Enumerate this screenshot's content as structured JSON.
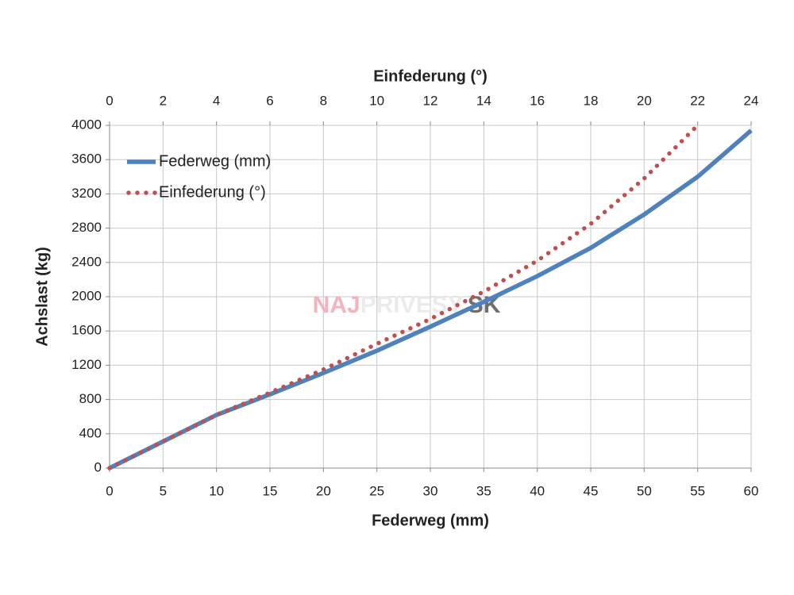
{
  "chart_data": {
    "type": "line",
    "xlabel": "Federweg (mm)",
    "x2label": "Einfederung (°)",
    "ylabel": "Achslast (kg)",
    "watermark": [
      "NAJ",
      "PRIVESY",
      ".SK"
    ],
    "xlim": [
      0,
      60
    ],
    "xticks": [
      0,
      5,
      10,
      15,
      20,
      25,
      30,
      35,
      40,
      45,
      50,
      55,
      60
    ],
    "x2lim": [
      0,
      24
    ],
    "x2ticks": [
      0,
      2,
      4,
      6,
      8,
      10,
      12,
      14,
      16,
      18,
      20,
      22,
      24
    ],
    "ylim": [
      0,
      4000
    ],
    "yticks": [
      0,
      400,
      800,
      1200,
      1600,
      2000,
      2400,
      2800,
      3200,
      3600,
      4000
    ],
    "grid": true,
    "legend": "upper left",
    "series": [
      {
        "name": "Federweg (mm)",
        "color": "#4f81bd",
        "style": "solid",
        "x": [
          0,
          5,
          10,
          15,
          20,
          25,
          30,
          35,
          40,
          45,
          50,
          55,
          60
        ],
        "values": [
          0,
          310,
          620,
          860,
          1110,
          1370,
          1650,
          1940,
          2240,
          2570,
          2960,
          3400,
          3940
        ]
      },
      {
        "name": "Einfederung (°)",
        "color": "#c0504d",
        "style": "dotted",
        "axis": "x2",
        "x": [
          0,
          2,
          4,
          6,
          8,
          10,
          12,
          14,
          16,
          18,
          20,
          22
        ],
        "values": [
          0,
          310,
          620,
          880,
          1150,
          1450,
          1740,
          2060,
          2420,
          2850,
          3380,
          4000
        ]
      }
    ]
  }
}
